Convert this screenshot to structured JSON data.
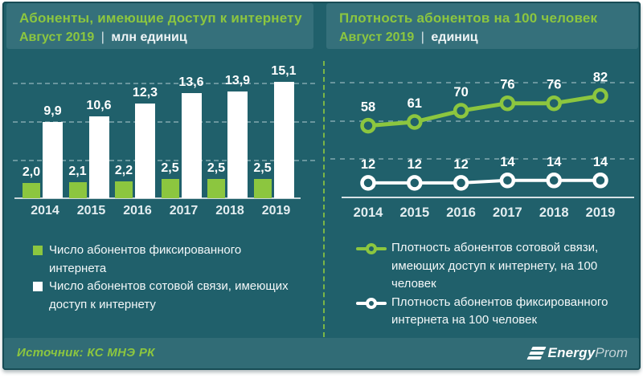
{
  "header_left": {
    "title": "Абоненты, имеющие доступ к интернету",
    "period": "Август 2019",
    "separator": "|",
    "units": "млн единиц"
  },
  "header_right": {
    "title": "Плотность абонентов на 100 человек",
    "period": "Август 2019",
    "separator": "|",
    "units": "единиц"
  },
  "legend_left": {
    "items": [
      {
        "label": "Число абонентов фиксированного интернета",
        "swatch_color": "#8CC63F"
      },
      {
        "label": "Число абонентов сотовой связи, имеющих доступ к интернету",
        "swatch_color": "#FFFFFF"
      }
    ]
  },
  "legend_right": {
    "items": [
      {
        "label": "Плотность абонентов сотовой связи, имеющих доступ к интернету, на 100 человек",
        "swatch_color": "#8CC63F"
      },
      {
        "label": "Плотность абонентов фиксированного интернета на 100 человек",
        "swatch_color": "#FFFFFF"
      }
    ]
  },
  "footer": {
    "source": "Источник: КС МНЭ РК",
    "logo_bold": "Energy",
    "logo_light": "Prom"
  },
  "colors": {
    "accent_green": "#8CC63F",
    "panel_background": "#20606B",
    "band_background": "#35707B",
    "series_white": "#FFFFFF"
  },
  "chart_data": [
    {
      "type": "bar",
      "title": "Абоненты, имеющие доступ к интернету",
      "subtitle": "Август 2019 | млн единиц",
      "categories": [
        "2014",
        "2015",
        "2016",
        "2017",
        "2018",
        "2019"
      ],
      "series": [
        {
          "name": "Число абонентов фиксированного интернета",
          "color": "#8CC63F",
          "values": [
            2.0,
            2.1,
            2.2,
            2.5,
            2.5,
            2.5
          ],
          "labels": [
            "2,0",
            "2,1",
            "2,2",
            "2,5",
            "2,5",
            "2,5"
          ]
        },
        {
          "name": "Число абонентов сотовой связи, имеющих доступ к интернету",
          "color": "#FFFFFF",
          "values": [
            9.9,
            10.6,
            12.3,
            13.6,
            13.9,
            15.1
          ],
          "labels": [
            "9,9",
            "10,6",
            "12,3",
            "13,6",
            "13,9",
            "15,1"
          ]
        }
      ],
      "ylim": [
        0,
        16
      ],
      "gridline_values": [
        5,
        10,
        15
      ],
      "grid": "dashed horizontal",
      "legend_position": "bottom"
    },
    {
      "type": "line",
      "title": "Плотность абонентов на 100 человек",
      "subtitle": "Август 2019 | единиц",
      "categories": [
        "2014",
        "2015",
        "2016",
        "2017",
        "2018",
        "2019"
      ],
      "series": [
        {
          "name": "Плотность абонентов сотовой связи, имеющих доступ к интернету, на 100 человек",
          "color": "#8CC63F",
          "values": [
            58,
            61,
            70,
            76,
            76,
            82
          ],
          "labels": [
            "58",
            "61",
            "70",
            "76",
            "76",
            "82"
          ]
        },
        {
          "name": "Плотность абонентов фиксированного интернета на 100 человек",
          "color": "#FFFFFF",
          "values": [
            12,
            12,
            12,
            14,
            14,
            14
          ],
          "labels": [
            "12",
            "12",
            "12",
            "14",
            "14",
            "14"
          ]
        }
      ],
      "ylim": [
        0,
        95
      ],
      "grid": "dashed horizontal",
      "legend_position": "bottom"
    }
  ]
}
